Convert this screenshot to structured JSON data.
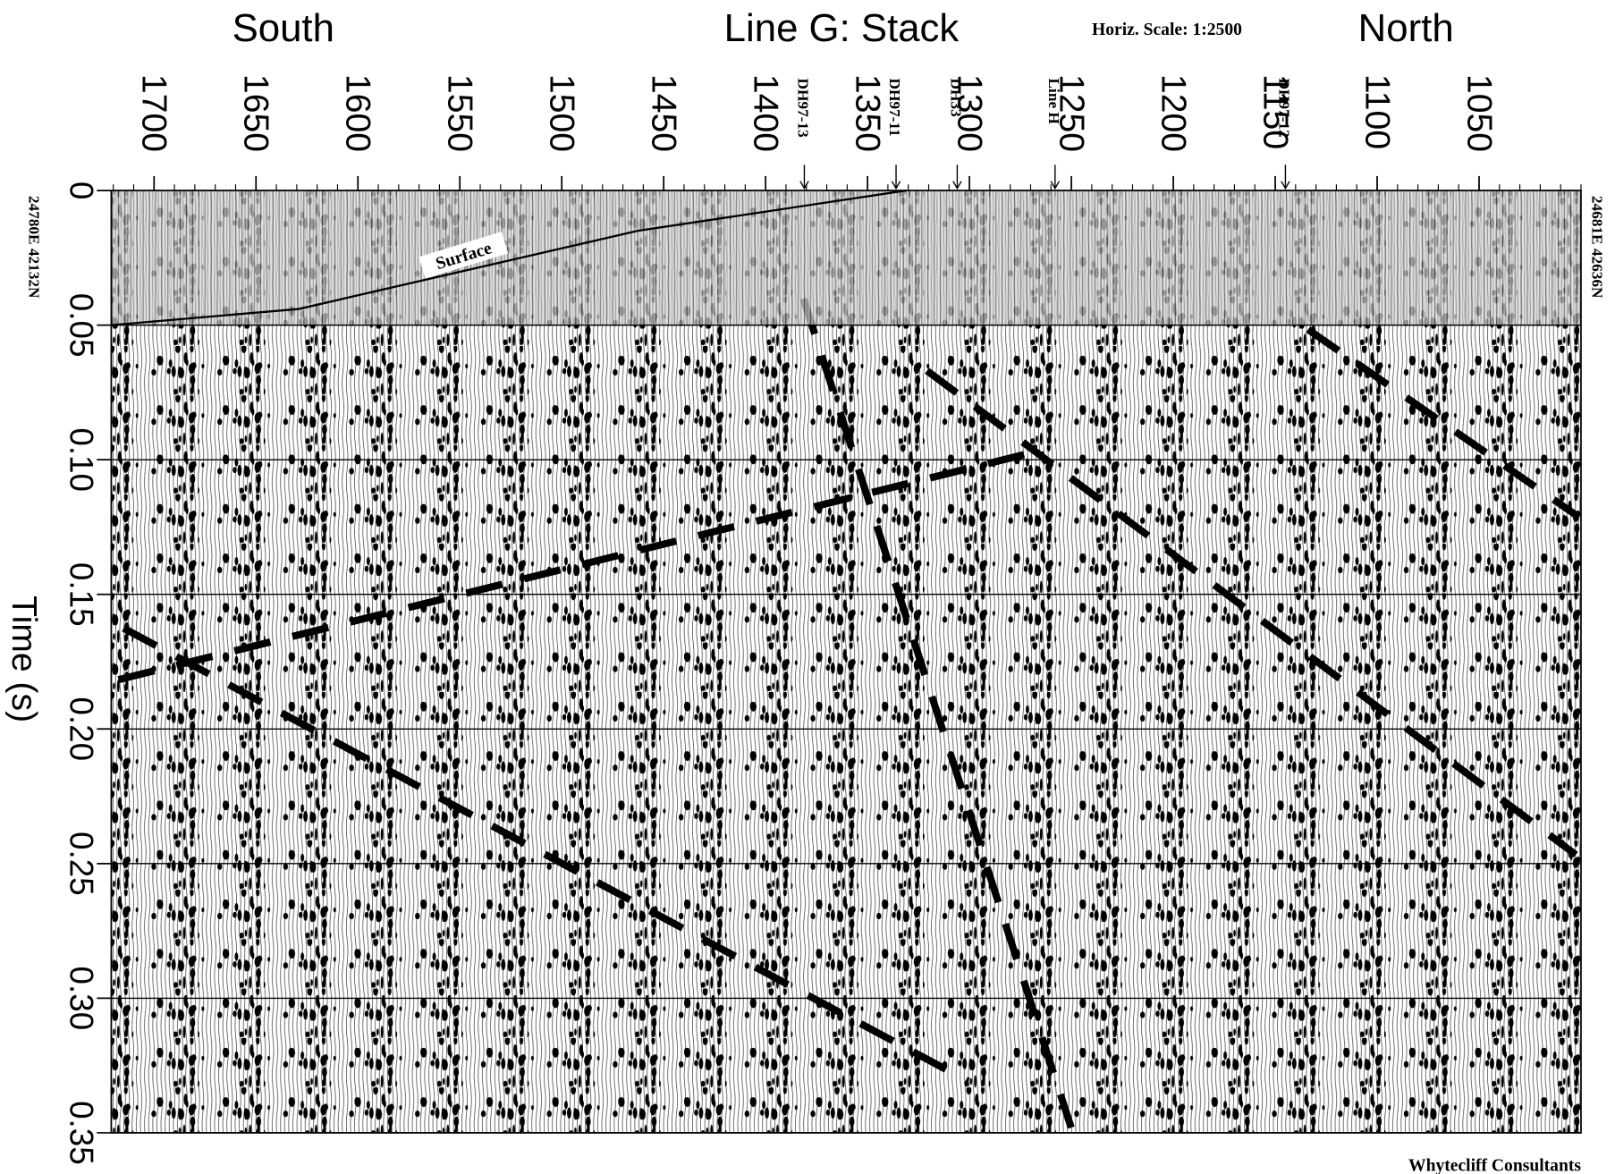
{
  "chart_data": {
    "type": "seismic-section",
    "title": "Line G: Stack",
    "left_label": "South",
    "right_label": "North",
    "scale_note": "Horiz. Scale: 1:2500",
    "y_label": "Time (s)",
    "left_coordinates": "24780E 42132N",
    "right_coordinates": "24681E 42636N",
    "credit": "Whytecliff Consultants",
    "xlim": [
      1721,
      1000
    ],
    "xticks": [
      1700,
      1650,
      1600,
      1550,
      1500,
      1450,
      1400,
      1350,
      1300,
      1250,
      1200,
      1150,
      1100,
      1050
    ],
    "ylim": [
      0,
      0.35
    ],
    "yticks": [
      0,
      0.05,
      {
        "value": 0.1,
        "label": "0.10"
      },
      0.15,
      {
        "value": 0.2,
        "label": "0.20"
      },
      0.25,
      {
        "value": 0.3,
        "label": "0.30"
      },
      0.35
    ],
    "grid": true,
    "markers": [
      {
        "label": "DH97-13",
        "x": 1381
      },
      {
        "label": "DH97-11",
        "x": 1336
      },
      {
        "label": "DH33",
        "x": 1306
      },
      {
        "label": "Line H",
        "x": 1258
      },
      {
        "label": "DH97-12",
        "x": 1145
      }
    ],
    "surface": {
      "name": "Surface",
      "color": "#000000",
      "x": [
        1721,
        1629,
        1463,
        1331
      ],
      "values": [
        0.05,
        0.044,
        0.015,
        0
      ]
    }
  }
}
